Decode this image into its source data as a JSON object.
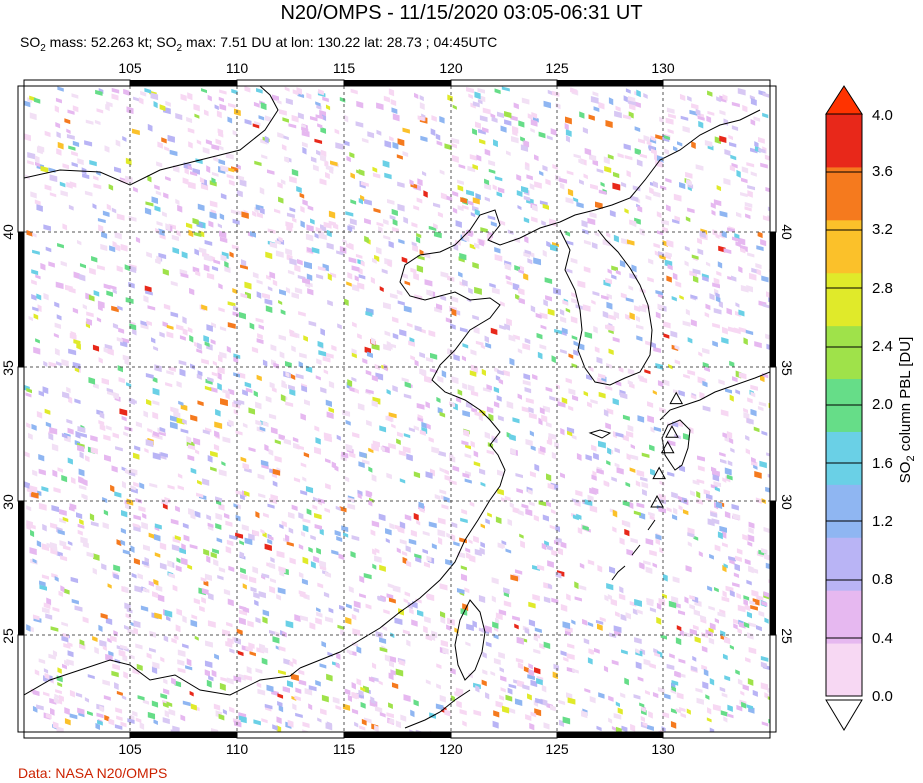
{
  "title": "N20/OMPS - 11/15/2020 03:05-06:31 UT",
  "subtitle": {
    "part1": "SO",
    "sub1": "2",
    "part2": " mass: 52.263 kt; SO",
    "sub2": "2",
    "part3": " max: 7.51 DU at lon: 130.22 lat: 28.73 ; 04:45UTC"
  },
  "credit": "Data: NASA N20/OMPS",
  "map": {
    "lon_ticks": [
      "105",
      "110",
      "115",
      "120",
      "125",
      "130"
    ],
    "lat_ticks": [
      "40",
      "35",
      "30",
      "25"
    ],
    "lon_range": [
      100.5,
      135.5
    ],
    "lat_range": [
      20.0,
      45.0
    ]
  },
  "colorbar": {
    "title_main": "SO",
    "title_sub": "2",
    "title_rest": " column PBL [DU]",
    "labels": [
      "4.0",
      "3.6",
      "3.2",
      "2.8",
      "2.4",
      "2.0",
      "1.6",
      "1.2",
      "0.8",
      "0.4",
      "0.0"
    ],
    "colors": [
      "#ffffff",
      "#f7d8f3",
      "#e6b8f0",
      "#b9b4f5",
      "#8fb6f2",
      "#6ad0e6",
      "#66dd88",
      "#9fe24a",
      "#e0ea2a",
      "#fbc12a",
      "#f57a1e",
      "#e8281a"
    ],
    "over_color": "#ff3300",
    "under_color": "#ffffff"
  },
  "volcanoes": [
    {
      "lon": 131.1,
      "lat": 32.9
    },
    {
      "lon": 130.9,
      "lat": 31.6
    },
    {
      "lon": 130.7,
      "lat": 31.0
    },
    {
      "lon": 130.3,
      "lat": 30.0
    },
    {
      "lon": 130.2,
      "lat": 28.9
    }
  ]
}
